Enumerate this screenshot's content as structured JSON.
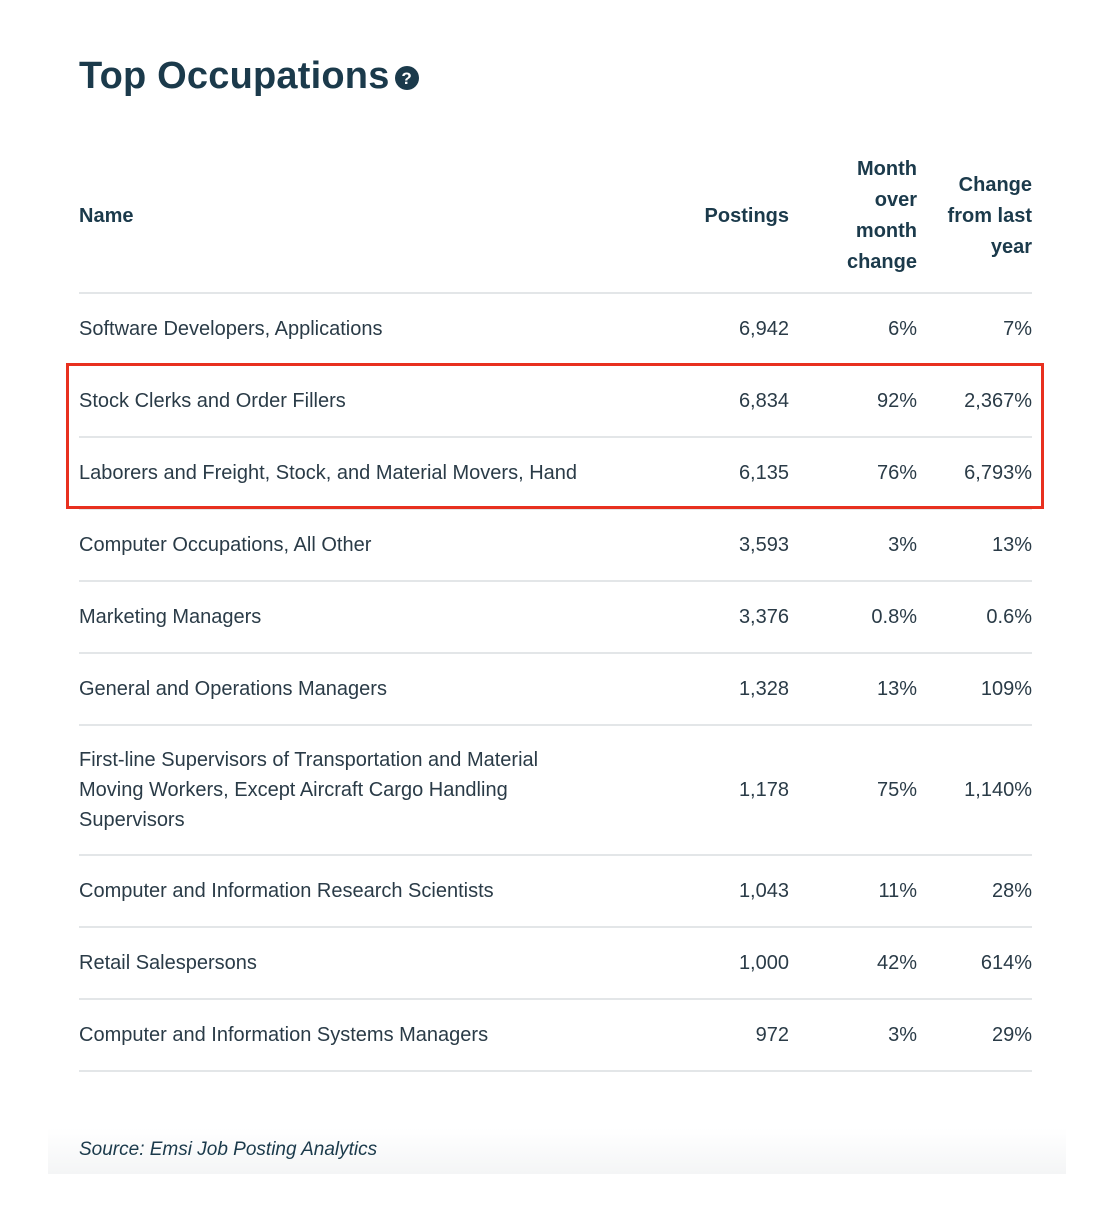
{
  "title": "Top Occupations",
  "help_icon": "question-mark-circle-icon",
  "chart_data": {
    "type": "table",
    "columns": [
      "Name",
      "Postings",
      "Month over month change",
      "Change from last year"
    ],
    "rows": [
      {
        "name": "Software Developers, Applications",
        "postings": "6,942",
        "mom": "6%",
        "yoy": "7%"
      },
      {
        "name": "Stock Clerks and Order Fillers",
        "postings": "6,834",
        "mom": "92%",
        "yoy": "2,367%"
      },
      {
        "name": "Laborers and Freight, Stock, and Material Movers, Hand",
        "postings": "6,135",
        "mom": "76%",
        "yoy": "6,793%"
      },
      {
        "name": "Computer Occupations, All Other",
        "postings": "3,593",
        "mom": "3%",
        "yoy": "13%"
      },
      {
        "name": "Marketing Managers",
        "postings": "3,376",
        "mom": "0.8%",
        "yoy": "0.6%"
      },
      {
        "name": "General and Operations Managers",
        "postings": "1,328",
        "mom": "13%",
        "yoy": "109%"
      },
      {
        "name": "First-line Supervisors of Transportation and Material Moving Workers, Except Aircraft Cargo Handling Supervisors",
        "postings": "1,178",
        "mom": "75%",
        "yoy": "1,140%"
      },
      {
        "name": "Computer and Information Research Scientists",
        "postings": "1,043",
        "mom": "11%",
        "yoy": "28%"
      },
      {
        "name": "Retail Salespersons",
        "postings": "1,000",
        "mom": "42%",
        "yoy": "614%"
      },
      {
        "name": "Computer and Information Systems Managers",
        "postings": "972",
        "mom": "3%",
        "yoy": "29%"
      }
    ],
    "highlighted_rows": [
      1,
      2
    ],
    "highlight_color": "#e8301f"
  },
  "source": "Source: Emsi Job Posting Analytics"
}
